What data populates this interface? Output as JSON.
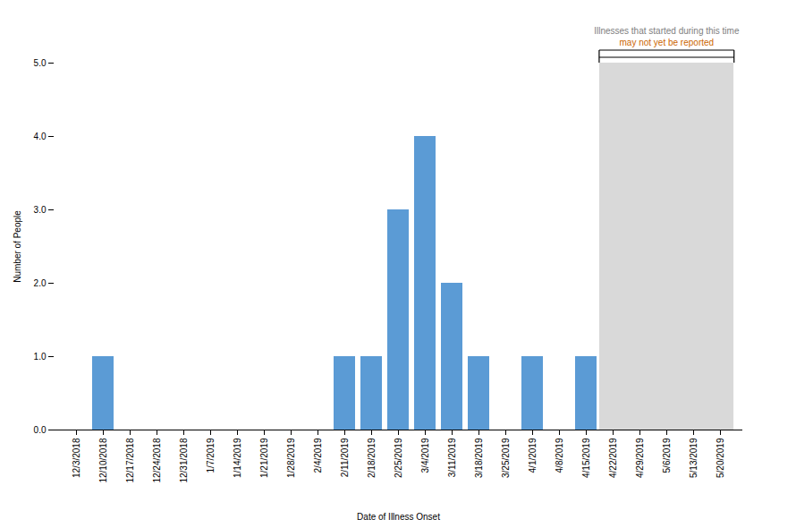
{
  "chart_data": {
    "type": "bar",
    "categories": [
      "12/3/2018",
      "12/10/2018",
      "12/17/2018",
      "12/24/2018",
      "12/31/2018",
      "1/7/2019",
      "1/14/2019",
      "1/21/2019",
      "1/28/2019",
      "2/4/2019",
      "2/11/2019",
      "2/18/2019",
      "2/25/2019",
      "3/4/2019",
      "3/11/2019",
      "3/18/2019",
      "3/25/2019",
      "4/1/2019",
      "4/8/2019",
      "4/15/2019",
      "4/22/2019",
      "4/29/2019",
      "5/6/2019",
      "5/13/2019",
      "5/20/2019"
    ],
    "values": [
      0,
      1,
      0,
      0,
      0,
      0,
      0,
      0,
      0,
      0,
      1,
      1,
      3,
      4,
      2,
      1,
      0,
      1,
      0,
      1,
      0,
      0,
      0,
      0,
      0
    ],
    "color": "#5b9bd5",
    "xlabel": "Date of Illness Onset",
    "ylabel": "Number of People",
    "ylim": [
      0,
      5
    ],
    "yticks": [
      0,
      1,
      2,
      3,
      4,
      5
    ],
    "grid": false,
    "shaded": {
      "from": "4/22/2019",
      "to": "5/20/2019",
      "color": "#d9d9d9"
    },
    "annotations": [
      {
        "text": "Illnesses that started during this time",
        "color": "#808080"
      },
      {
        "text": "may not yet be reported",
        "color": "#cc6600"
      }
    ]
  }
}
